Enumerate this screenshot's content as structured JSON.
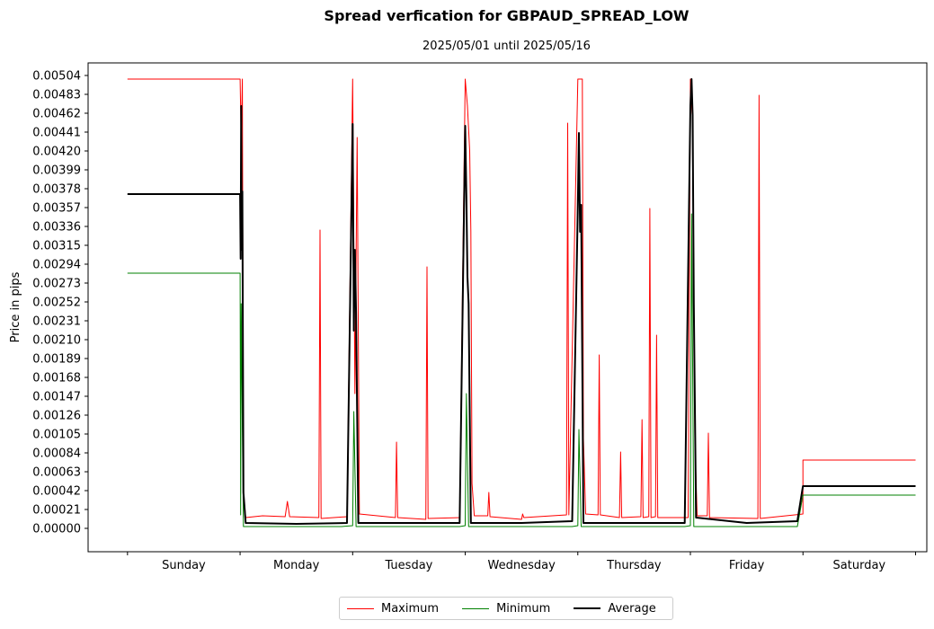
{
  "chart_data": {
    "type": "line",
    "title": "Spread verfication for GBPAUD_SPREAD_LOW",
    "subtitle": "2025/05/01 until 2025/05/16",
    "xlabel": "",
    "ylabel": "Price in pips",
    "ylim": [
      -0.00026,
      0.00518
    ],
    "xlim": [
      -0.35,
      7.1
    ],
    "y_ticks": [
      "0.00000",
      "0.00021",
      "0.00042",
      "0.00063",
      "0.00084",
      "0.00105",
      "0.00126",
      "0.00147",
      "0.00168",
      "0.00189",
      "0.00210",
      "0.00231",
      "0.00252",
      "0.00273",
      "0.00294",
      "0.00315",
      "0.00336",
      "0.00357",
      "0.00378",
      "0.00399",
      "0.00420",
      "0.00441",
      "0.00462",
      "0.00483",
      "0.00504"
    ],
    "categories": [
      "Sunday",
      "Monday",
      "Tuesday",
      "Wednesday",
      "Thursday",
      "Friday",
      "Saturday"
    ],
    "grid": false,
    "legend_position": "bottom-center",
    "series": [
      {
        "name": "Maximum",
        "color": "#ff0000",
        "width": 1,
        "points": [
          [
            0,
            0.005
          ],
          [
            1.0,
            0.005
          ],
          [
            1.01,
            0.0043
          ],
          [
            1.02,
            0.005
          ],
          [
            1.03,
            0.0004
          ],
          [
            1.05,
            0.00012
          ],
          [
            1.2,
            0.00014
          ],
          [
            1.4,
            0.00013
          ],
          [
            1.42,
            0.0003
          ],
          [
            1.44,
            0.00013
          ],
          [
            1.7,
            0.00012
          ],
          [
            1.71,
            0.00332
          ],
          [
            1.72,
            0.00011
          ],
          [
            1.95,
            0.00013
          ],
          [
            2.0,
            0.005
          ],
          [
            2.02,
            0.0015
          ],
          [
            2.04,
            0.00435
          ],
          [
            2.06,
            0.00016
          ],
          [
            2.3,
            0.00013
          ],
          [
            2.38,
            0.00012
          ],
          [
            2.39,
            0.00096
          ],
          [
            2.4,
            0.00012
          ],
          [
            2.65,
            0.0001
          ],
          [
            2.66,
            0.00291
          ],
          [
            2.67,
            0.00011
          ],
          [
            2.95,
            0.00012
          ],
          [
            3.0,
            0.005
          ],
          [
            3.02,
            0.0047
          ],
          [
            3.04,
            0.0042
          ],
          [
            3.05,
            0.0033
          ],
          [
            3.06,
            0.0005
          ],
          [
            3.08,
            0.00014
          ],
          [
            3.2,
            0.00014
          ],
          [
            3.21,
            0.0004
          ],
          [
            3.22,
            0.00013
          ],
          [
            3.5,
            0.0001
          ],
          [
            3.51,
            0.00016
          ],
          [
            3.52,
            0.00012
          ],
          [
            3.9,
            0.00015
          ],
          [
            3.91,
            0.00451
          ],
          [
            3.92,
            0.00015
          ],
          [
            4.0,
            0.005
          ],
          [
            4.04,
            0.005
          ],
          [
            4.05,
            0.001
          ],
          [
            4.07,
            0.00016
          ],
          [
            4.18,
            0.00015
          ],
          [
            4.19,
            0.00193
          ],
          [
            4.2,
            0.00015
          ],
          [
            4.37,
            0.00012
          ],
          [
            4.38,
            0.00085
          ],
          [
            4.39,
            0.00012
          ],
          [
            4.56,
            0.00013
          ],
          [
            4.57,
            0.00121
          ],
          [
            4.58,
            0.00012
          ],
          [
            4.63,
            0.00013
          ],
          [
            4.64,
            0.00356
          ],
          [
            4.65,
            0.00012
          ],
          [
            4.69,
            0.00013
          ],
          [
            4.7,
            0.00215
          ],
          [
            4.71,
            0.00012
          ],
          [
            4.98,
            0.00012
          ],
          [
            5.0,
            0.005
          ],
          [
            5.02,
            0.0045
          ],
          [
            5.04,
            0.001
          ],
          [
            5.06,
            0.00014
          ],
          [
            5.15,
            0.00014
          ],
          [
            5.16,
            0.00106
          ],
          [
            5.17,
            0.00012
          ],
          [
            5.6,
            0.00011
          ],
          [
            5.61,
            0.00482
          ],
          [
            5.62,
            0.00011
          ],
          [
            6.0,
            0.00016
          ],
          [
            6.0,
            0.00076
          ],
          [
            7.0,
            0.00076
          ]
        ]
      },
      {
        "name": "Minimum",
        "color": "#008000",
        "width": 1,
        "points": [
          [
            0,
            0.00284
          ],
          [
            1.0,
            0.00284
          ],
          [
            1.005,
            0.00015
          ],
          [
            1.01,
            0.0025
          ],
          [
            1.015,
            0.0019
          ],
          [
            1.02,
            0.0011
          ],
          [
            1.03,
            2e-05
          ],
          [
            1.9,
            2e-05
          ],
          [
            2.0,
            3e-05
          ],
          [
            2.01,
            0.0013
          ],
          [
            2.03,
            2e-05
          ],
          [
            2.95,
            2e-05
          ],
          [
            3.0,
            3e-05
          ],
          [
            3.01,
            0.0015
          ],
          [
            3.03,
            2e-05
          ],
          [
            3.95,
            2e-05
          ],
          [
            4.0,
            3e-05
          ],
          [
            4.01,
            0.0011
          ],
          [
            4.03,
            2e-05
          ],
          [
            4.95,
            2e-05
          ],
          [
            5.0,
            3e-05
          ],
          [
            5.01,
            0.0035
          ],
          [
            5.03,
            2e-05
          ],
          [
            5.95,
            2e-05
          ],
          [
            6.0,
            0.00037
          ],
          [
            7.0,
            0.00037
          ]
        ]
      },
      {
        "name": "Average",
        "color": "#000000",
        "width": 2,
        "points": [
          [
            0,
            0.00372
          ],
          [
            1.0,
            0.00372
          ],
          [
            1.005,
            0.003
          ],
          [
            1.01,
            0.0047
          ],
          [
            1.015,
            0.0031
          ],
          [
            1.02,
            0.00375
          ],
          [
            1.03,
            0.0004
          ],
          [
            1.05,
            6e-05
          ],
          [
            1.5,
            5e-05
          ],
          [
            1.95,
            6e-05
          ],
          [
            2.0,
            0.0045
          ],
          [
            2.01,
            0.0022
          ],
          [
            2.02,
            0.0031
          ],
          [
            2.03,
            0.0024
          ],
          [
            2.05,
            6e-05
          ],
          [
            2.5,
            6e-05
          ],
          [
            2.95,
            6e-05
          ],
          [
            3.0,
            0.00448
          ],
          [
            3.01,
            0.0037
          ],
          [
            3.02,
            0.0028
          ],
          [
            3.03,
            0.0025
          ],
          [
            3.05,
            6e-05
          ],
          [
            3.5,
            6e-05
          ],
          [
            3.95,
            8e-05
          ],
          [
            4.0,
            0.0036
          ],
          [
            4.01,
            0.0044
          ],
          [
            4.02,
            0.0033
          ],
          [
            4.03,
            0.0036
          ],
          [
            4.05,
            6e-05
          ],
          [
            4.5,
            6e-05
          ],
          [
            4.95,
            6e-05
          ],
          [
            5.0,
            0.0047
          ],
          [
            5.01,
            0.005
          ],
          [
            5.02,
            0.0046
          ],
          [
            5.03,
            0.0025
          ],
          [
            5.05,
            0.00012
          ],
          [
            5.5,
            6e-05
          ],
          [
            5.95,
            8e-05
          ],
          [
            6.0,
            0.00047
          ],
          [
            7.0,
            0.00047
          ]
        ]
      }
    ]
  }
}
